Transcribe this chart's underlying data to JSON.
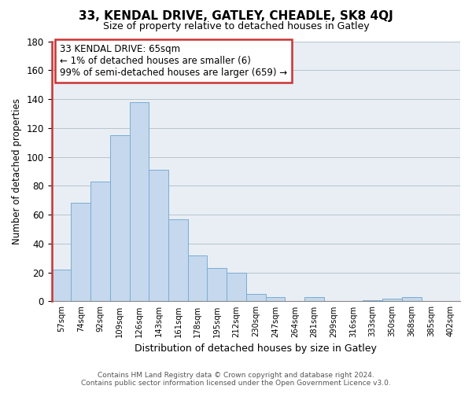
{
  "title": "33, KENDAL DRIVE, GATLEY, CHEADLE, SK8 4QJ",
  "subtitle": "Size of property relative to detached houses in Gatley",
  "xlabel": "Distribution of detached houses by size in Gatley",
  "ylabel": "Number of detached properties",
  "bar_labels": [
    "57sqm",
    "74sqm",
    "92sqm",
    "109sqm",
    "126sqm",
    "143sqm",
    "161sqm",
    "178sqm",
    "195sqm",
    "212sqm",
    "230sqm",
    "247sqm",
    "264sqm",
    "281sqm",
    "299sqm",
    "316sqm",
    "333sqm",
    "350sqm",
    "368sqm",
    "385sqm",
    "402sqm"
  ],
  "bar_values": [
    22,
    68,
    83,
    115,
    138,
    91,
    57,
    32,
    23,
    20,
    5,
    3,
    0,
    3,
    0,
    0,
    1,
    2,
    3,
    0,
    0
  ],
  "bar_color": "#c5d8ed",
  "bar_edge_color": "#7aadd4",
  "highlight_color": "#cc3333",
  "annotation_text": "33 KENDAL DRIVE: 65sqm\n← 1% of detached houses are smaller (6)\n99% of semi-detached houses are larger (659) →",
  "ylim": [
    0,
    180
  ],
  "yticks": [
    0,
    20,
    40,
    60,
    80,
    100,
    120,
    140,
    160,
    180
  ],
  "footer_line1": "Contains HM Land Registry data © Crown copyright and database right 2024.",
  "footer_line2": "Contains public sector information licensed under the Open Government Licence v3.0.",
  "bg_color": "#e8eef4",
  "title_fontsize": 11,
  "subtitle_fontsize": 9
}
